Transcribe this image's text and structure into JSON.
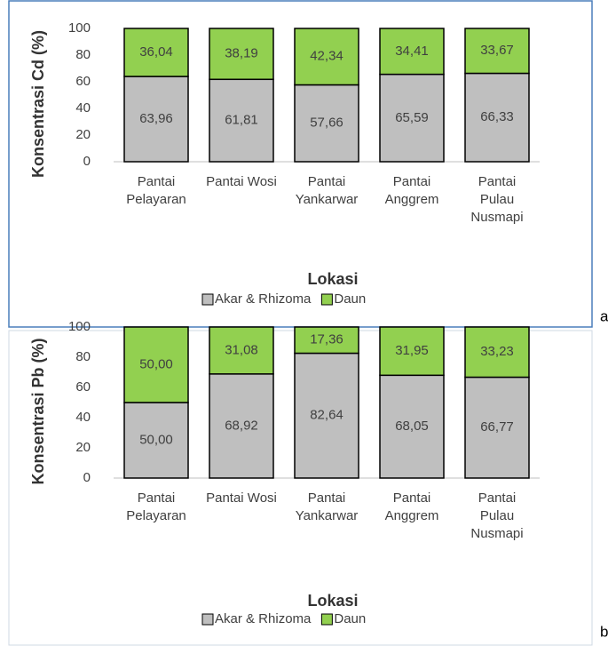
{
  "chart_data": [
    {
      "type": "stacked_bar",
      "panel_label": "a",
      "ylabel": "Konsentrasi Cd (%)",
      "xlabel": "Lokasi",
      "categories": [
        "Pantai\nPelayaran",
        "Pantai Wosi",
        "Pantai\nYankarwar",
        "Pantai\nAnggrem",
        "Pantai\nPulau\nNusmapi"
      ],
      "ylim": [
        0,
        100
      ],
      "yticks": [
        0,
        20,
        40,
        60,
        80,
        100
      ],
      "legend": "bottom",
      "series": [
        {
          "name": "Akar & Rhizoma",
          "color": "#bfbfbf",
          "values": [
            63.96,
            61.81,
            57.66,
            65.59,
            66.33
          ],
          "value_labels": [
            "63,96",
            "61,81",
            "57,66",
            "65,59",
            "66,33"
          ]
        },
        {
          "name": "Daun",
          "color": "#92d050",
          "values": [
            36.04,
            38.19,
            42.34,
            34.41,
            33.67
          ],
          "value_labels": [
            "36,04",
            "38,19",
            "42,34",
            "34,41",
            "33,67"
          ]
        }
      ]
    },
    {
      "type": "stacked_bar",
      "panel_label": "b",
      "ylabel": "Konsentrasi Pb (%)",
      "xlabel": "Lokasi",
      "categories": [
        "Pantai\nPelayaran",
        "Pantai Wosi",
        "Pantai\nYankarwar",
        "Pantai\nAnggrem",
        "Pantai\nPulau\nNusmapi"
      ],
      "ylim": [
        0,
        100
      ],
      "yticks": [
        0,
        20,
        40,
        60,
        80,
        100
      ],
      "legend": "bottom",
      "series": [
        {
          "name": "Akar & Rhizoma",
          "color": "#bfbfbf",
          "values": [
            50.0,
            68.92,
            82.64,
            68.05,
            66.77
          ],
          "value_labels": [
            "50,00",
            "68,92",
            "82,64",
            "68,05",
            "66,77"
          ]
        },
        {
          "name": "Daun",
          "color": "#92d050",
          "values": [
            50.0,
            31.08,
            17.36,
            31.95,
            33.23
          ],
          "value_labels": [
            "50,00",
            "31,08",
            "17,36",
            "31,95",
            "33,23"
          ]
        }
      ]
    }
  ]
}
